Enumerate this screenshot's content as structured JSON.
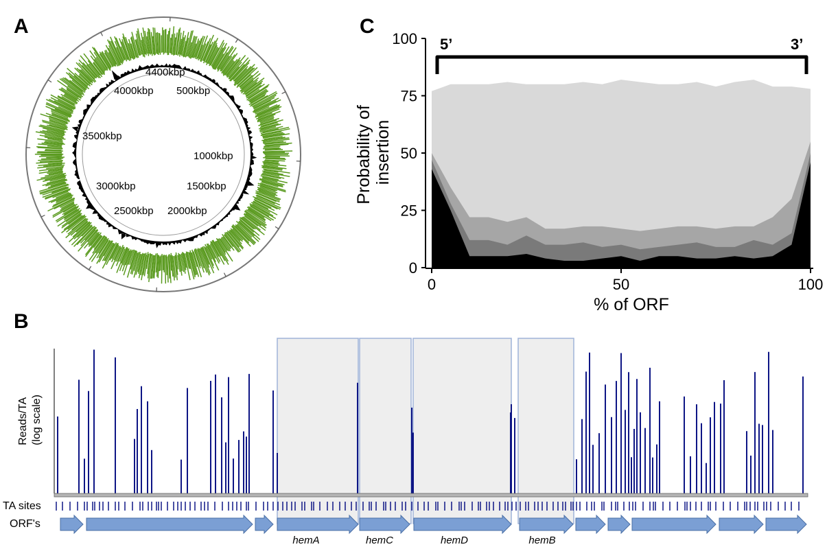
{
  "panels": {
    "a": {
      "letter": "A"
    },
    "b": {
      "letter": "B"
    },
    "c": {
      "letter": "C"
    }
  },
  "panel_a": {
    "ring_labels": [
      "4400kbp",
      "500kbp",
      "1000kbp",
      "1500kbp",
      "2000kbp",
      "2500kbp",
      "3000kbp",
      "3500kbp",
      "4000kbp"
    ],
    "insertion_color": "#5a9a1f"
  },
  "panel_b": {
    "ylabel_line1": "Reads/TA",
    "ylabel_line2": "(log scale)",
    "ta_label": "TA sites",
    "orf_label": "ORF's",
    "bar_color": "#0d1585",
    "orf_color": "#7b9fd4",
    "genes": [
      {
        "name": "hemA"
      },
      {
        "name": "hemC"
      },
      {
        "name": "hemD"
      },
      {
        "name": "hemB"
      }
    ]
  },
  "chart_data": {
    "type": "area",
    "xlabel": "% of ORF",
    "ylabel": "Probability of insertion",
    "xlim": [
      0,
      100
    ],
    "ylim": [
      0,
      100
    ],
    "xticks": [
      0,
      50,
      100
    ],
    "yticks": [
      0,
      25,
      50,
      75,
      100
    ],
    "bracket_left": "5’",
    "bracket_right": "3’",
    "x": [
      0,
      5,
      10,
      15,
      20,
      25,
      30,
      35,
      40,
      45,
      50,
      55,
      60,
      65,
      70,
      75,
      80,
      85,
      90,
      95,
      100
    ],
    "series": [
      {
        "color": "#d9d9d9",
        "values": [
          77,
          80,
          80,
          80,
          81,
          80,
          80,
          80,
          81,
          80,
          82,
          81,
          80,
          80,
          81,
          79,
          81,
          82,
          79,
          79,
          78
        ]
      },
      {
        "color": "#a6a6a6",
        "values": [
          50,
          35,
          22,
          22,
          20,
          22,
          17,
          17,
          18,
          18,
          17,
          16,
          17,
          18,
          18,
          17,
          18,
          18,
          22,
          30,
          55
        ]
      },
      {
        "color": "#7a7a7a",
        "values": [
          47,
          28,
          12,
          12,
          10,
          14,
          10,
          10,
          11,
          9,
          10,
          8,
          9,
          10,
          11,
          9,
          9,
          12,
          10,
          15,
          50
        ]
      },
      {
        "color": "#000000",
        "values": [
          43,
          25,
          5,
          5,
          5,
          6,
          4,
          3,
          3,
          4,
          5,
          3,
          5,
          5,
          4,
          4,
          5,
          4,
          5,
          10,
          46
        ]
      }
    ]
  }
}
